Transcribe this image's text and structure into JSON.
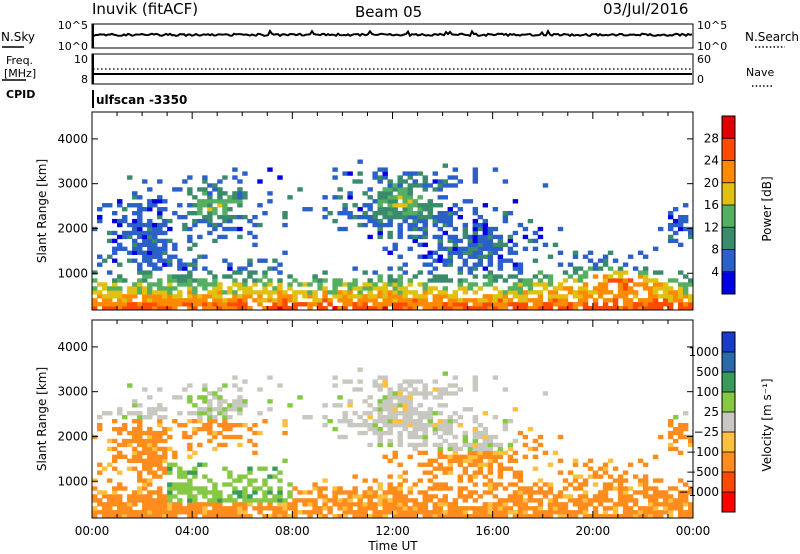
{
  "header": {
    "station": "Inuvik (fitACF)",
    "beam": "Beam 05",
    "date": "03/Jul/2016",
    "program": "ulfscan -3350"
  },
  "chart_data": [
    {
      "type": "line",
      "id": "noise",
      "left_labels": [
        "N.Sky",
        "N.Search"
      ],
      "y_ticks_left": [
        "10^5",
        "10^0"
      ],
      "y_ticks_right": [
        "10^5",
        "10^0"
      ],
      "series": [
        {
          "name": "N.Sky",
          "style": "solid",
          "level": 0.55
        },
        {
          "name": "N.Search",
          "style": "dotted"
        }
      ]
    },
    {
      "type": "line",
      "id": "freq",
      "left_labels": [
        "Freq.",
        "[MHz]",
        "CPID"
      ],
      "right_label": "Nave",
      "y_ticks_left": [
        "10",
        "8"
      ],
      "y_ticks_right": [
        "60",
        "0"
      ],
      "ylim_left": [
        8,
        10
      ],
      "ylim_right": [
        0,
        60
      ]
    },
    {
      "type": "heatmap",
      "id": "power",
      "ylabel": "Slant Range [km]",
      "y_ticks": [
        "4000",
        "3000",
        "2000",
        "1000"
      ],
      "ylim": [
        180,
        4600
      ],
      "xlim_hours": [
        0,
        24
      ],
      "colorbar": {
        "label": "Power [dB]",
        "ticks": [
          "28",
          "24",
          "20",
          "16",
          "12",
          "8",
          "4"
        ],
        "colors": [
          "#0000e0",
          "#2a60c8",
          "#3a8a6c",
          "#54b060",
          "#e0c010",
          "#ff8a00",
          "#ff4a00",
          "#e00000"
        ]
      }
    },
    {
      "type": "heatmap",
      "id": "velocity",
      "ylabel": "Slant Range [km]",
      "y_ticks": [
        "4000",
        "3000",
        "2000",
        "1000"
      ],
      "ylim": [
        180,
        4600
      ],
      "xlim_hours": [
        0,
        24
      ],
      "x_ticks": [
        "00:00",
        "04:00",
        "08:00",
        "12:00",
        "16:00",
        "20:00",
        "00:00"
      ],
      "xlabel": "Time UT",
      "colorbar": {
        "label": "Velocity [m s⁻¹]",
        "ticks": [
          "1000",
          "500",
          "100",
          "25",
          "−25",
          "−100",
          "−500",
          "−1000"
        ],
        "colors": [
          "#ff0000",
          "#ff4800",
          "#ff8c1c",
          "#ffc040",
          "#c8c8c0",
          "#84c844",
          "#3a9a5a",
          "#2a6aaa",
          "#1a3ac8"
        ]
      }
    }
  ]
}
